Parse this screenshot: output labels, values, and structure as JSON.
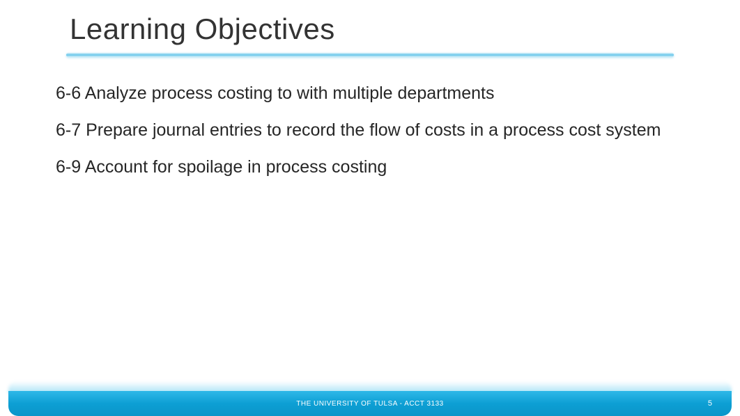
{
  "slide": {
    "title": "Learning Objectives",
    "objectives": [
      "6-6 Analyze process costing to with multiple departments",
      "6-7 Prepare journal entries to record the flow of costs in a process cost system",
      "6-9 Account for spoilage in process costing"
    ],
    "footer": {
      "text": "THE UNIVERSITY OF TULSA -  ACCT 3133",
      "page_number": "5"
    },
    "colors": {
      "title_color": "#333333",
      "body_color": "#262626",
      "accent_color": "#0d9fd4",
      "background": "#ffffff",
      "footer_text_color": "#ffffff"
    },
    "typography": {
      "title_fontsize": 42,
      "body_fontsize": 25,
      "footer_fontsize": 10,
      "font_family": "Segoe UI"
    }
  }
}
